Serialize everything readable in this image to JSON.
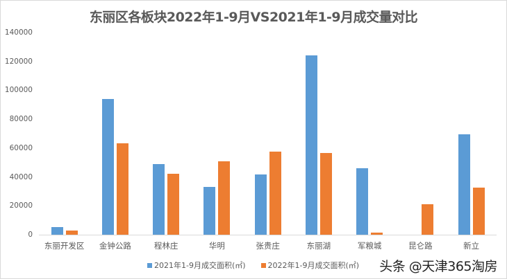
{
  "chart_data": {
    "type": "bar",
    "title": "东丽区各板块2022年1-9月VS2021年1-9月成交量对比",
    "xlabel": "",
    "ylabel": "",
    "ylim": [
      0,
      140000
    ],
    "yticks": [
      0,
      20000,
      40000,
      60000,
      80000,
      100000,
      120000,
      140000
    ],
    "ytick_labels": [
      "0",
      "20000",
      "40000",
      "60000",
      "80000",
      "100000",
      "120000",
      "140000"
    ],
    "grid": false,
    "legend_position": "bottom",
    "categories": [
      "东丽开发区",
      "金钟公路",
      "程林庄",
      "华明",
      "张贵庄",
      "东丽湖",
      "军粮城",
      "昆仑路",
      "新立"
    ],
    "series": [
      {
        "name": "2021年1-9月成交面积(㎡)",
        "color": "#5B9BD5",
        "values": [
          5300,
          94000,
          48900,
          33100,
          41700,
          124200,
          46000,
          0,
          69500
        ]
      },
      {
        "name": "2022年1-9月成交面积(㎡)",
        "color": "#ED7D31",
        "values": [
          2900,
          63300,
          42200,
          50800,
          57500,
          56600,
          1500,
          21100,
          32600
        ]
      }
    ]
  },
  "watermark": "头条 @天津365淘房"
}
